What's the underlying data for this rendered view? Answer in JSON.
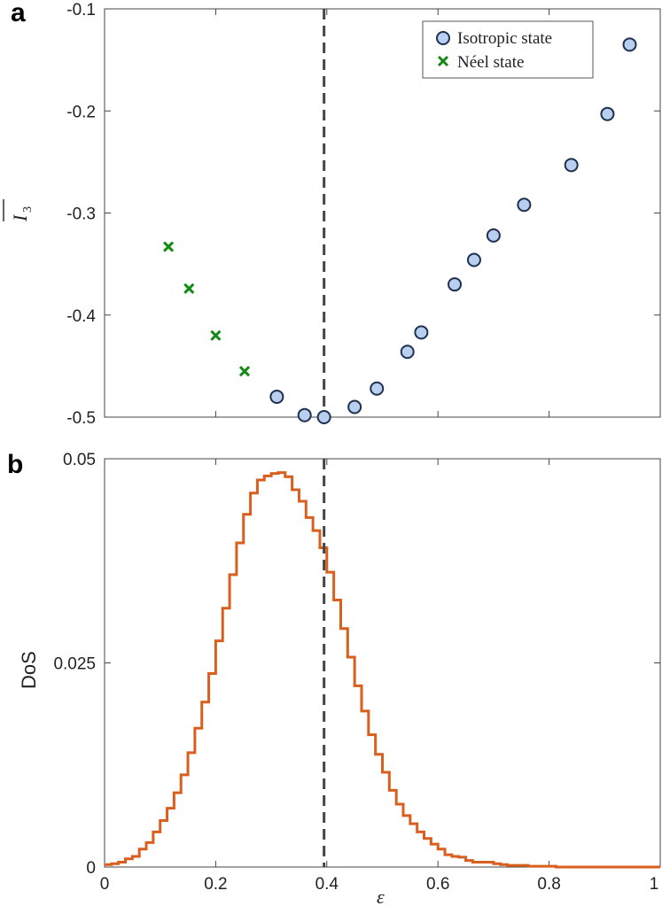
{
  "chart_data": [
    {
      "type": "scatter",
      "panel_letter": "a",
      "ylabel_main": "I",
      "ylabel_sub": "3",
      "ylabel_overline": true,
      "xlim": [
        0,
        1
      ],
      "ylim": [
        -0.5,
        -0.1
      ],
      "y_ticks": [
        -0.1,
        -0.2,
        -0.3,
        -0.4,
        -0.5
      ],
      "y_tick_labels": [
        "-0.1",
        "-0.2",
        "-0.3",
        "-0.4",
        "-0.5"
      ],
      "grid": false,
      "legend_position": "top-right",
      "vline_x": 0.395,
      "colors": {
        "isotropic_fill": "#b9cff0",
        "isotropic_edge": "#1f2f4f",
        "neel": "#148a14",
        "vline": "#444444"
      },
      "series": [
        {
          "name": "Isotropic state",
          "marker": "circle",
          "x": [
            0.31,
            0.36,
            0.395,
            0.45,
            0.49,
            0.545,
            0.57,
            0.63,
            0.665,
            0.7,
            0.755,
            0.84,
            0.905,
            0.945
          ],
          "y": [
            -0.48,
            -0.498,
            -0.5,
            -0.49,
            -0.472,
            -0.436,
            -0.417,
            -0.37,
            -0.346,
            -0.322,
            -0.292,
            -0.253,
            -0.203,
            -0.135
          ]
        },
        {
          "name": "Néel state",
          "marker": "x",
          "x": [
            0.115,
            0.152,
            0.2,
            0.252
          ],
          "y": [
            -0.333,
            -0.374,
            -0.42,
            -0.455
          ]
        }
      ]
    },
    {
      "type": "line",
      "style": "step",
      "panel_letter": "b",
      "ylabel": "DoS",
      "xlabel": "ε",
      "xlim": [
        0,
        1
      ],
      "ylim": [
        0,
        0.05
      ],
      "x_ticks": [
        0,
        0.2,
        0.4,
        0.6,
        0.8,
        1
      ],
      "x_tick_labels": [
        "0",
        "0.2",
        "0.4",
        "0.6",
        "0.8",
        "1"
      ],
      "y_ticks": [
        0,
        0.025,
        0.05
      ],
      "y_tick_labels": [
        "0",
        "0.025",
        "0.05"
      ],
      "grid": false,
      "vline_x": 0.395,
      "colors": {
        "line": "#d95f1e",
        "vline": "#444444"
      },
      "bin_width": 0.0125,
      "bin_start": 0,
      "values": [
        0.0003,
        0.0004,
        0.0006,
        0.001,
        0.0013,
        0.0022,
        0.003,
        0.0043,
        0.0057,
        0.0072,
        0.0091,
        0.0113,
        0.014,
        0.017,
        0.0202,
        0.0237,
        0.0277,
        0.0317,
        0.0358,
        0.0397,
        0.0432,
        0.0458,
        0.0474,
        0.0479,
        0.0482,
        0.0483,
        0.0478,
        0.0462,
        0.0448,
        0.0428,
        0.0412,
        0.0391,
        0.0361,
        0.0327,
        0.0292,
        0.0257,
        0.0222,
        0.0191,
        0.0162,
        0.0138,
        0.0116,
        0.0094,
        0.0077,
        0.0063,
        0.0053,
        0.0043,
        0.0035,
        0.0028,
        0.0022,
        0.0015,
        0.0013,
        0.0012,
        0.0008,
        0.0006,
        0.0006,
        0.0006,
        0.0004,
        0.0003,
        0.0002,
        0.0002,
        0.0002,
        0.0001,
        0.0001,
        0.0001,
        0.0001,
        0.0,
        0.0,
        0.0,
        0.0,
        0.0,
        0.0,
        0.0,
        0.0,
        0.0,
        0.0,
        0.0,
        0.0,
        0.0,
        0.0,
        0.0
      ]
    }
  ]
}
